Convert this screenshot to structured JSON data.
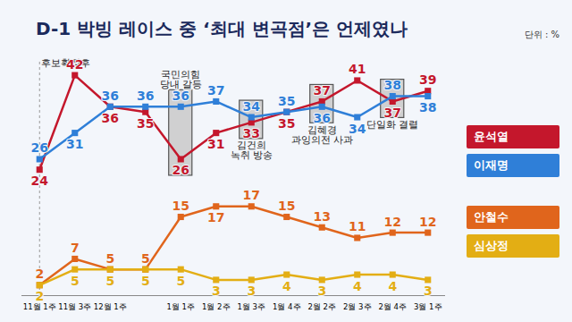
{
  "chart_data": {
    "type": "line",
    "title": "D-1 박빙 레이스 중 ‘최대 변곡점’은 언제였나",
    "unit": "단위 : %",
    "categories": [
      "11월 1주",
      "11월 3주",
      "12월 1주",
      null,
      "1월 1주",
      "1월 2주",
      "1월 3주",
      "1월 4주",
      "2월 2주",
      "2월 3주",
      "2월 4주",
      "3월 1주"
    ],
    "series": [
      {
        "name": "윤석열",
        "color": "#c4172c",
        "values": [
          24,
          42,
          36,
          35,
          26,
          31,
          33,
          35,
          37,
          41,
          37,
          39
        ]
      },
      {
        "name": "이재명",
        "color": "#2f7fd8",
        "values": [
          26,
          31,
          36,
          36,
          36,
          37,
          34,
          35,
          36,
          34,
          38,
          38
        ]
      },
      {
        "name": "안철수",
        "color": "#e0651c",
        "values": [
          2,
          7,
          5,
          5,
          15,
          17,
          17,
          15,
          13,
          11,
          12,
          12
        ]
      },
      {
        "name": "심상정",
        "color": "#e3ae14",
        "values": [
          2,
          5,
          5,
          5,
          5,
          3,
          3,
          4,
          3,
          4,
          4,
          3
        ]
      }
    ],
    "marker": "square",
    "ylim": [
      0,
      45
    ],
    "tick_labels": "x",
    "data_labels": true,
    "legend": "right",
    "period_label": {
      "text": "후보확정후",
      "x": "11월 1주"
    },
    "annotations": [
      {
        "text": "국민의힘\n당내 갈등",
        "x": "1월 1주"
      },
      {
        "text": "김건희\n녹취 방송",
        "x": "1월 3주"
      },
      {
        "text": "김혜경\n과잉의전 사과",
        "x": "2월 2주"
      },
      {
        "text": "단일화 결렬",
        "x": "2월 4주"
      }
    ]
  }
}
